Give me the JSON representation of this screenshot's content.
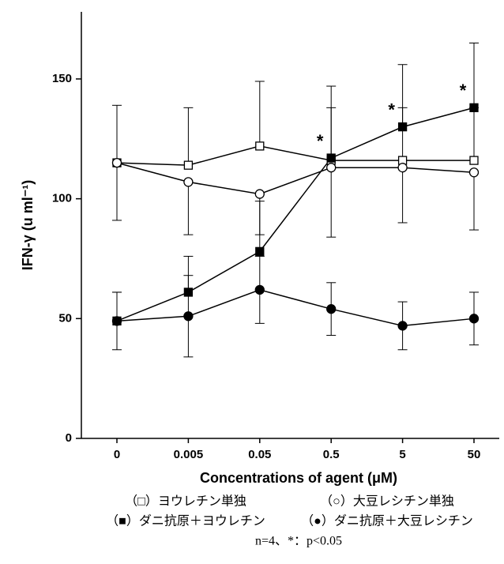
{
  "chart_data": {
    "type": "line",
    "ylabel": "IFN-γ (u ml⁻¹)",
    "xlabel": "Concentrations of agent (μM)",
    "categories": [
      "0",
      "0.005",
      "0.05",
      "0.5",
      "5",
      "50"
    ],
    "ylim": [
      0,
      178
    ],
    "yticks": [
      0,
      50,
      100,
      150
    ],
    "series": [
      {
        "name": "（□）ヨウレチン単独",
        "color": "#000000",
        "marker": "square-open",
        "error_side": "up",
        "values": [
          115,
          114,
          122,
          116,
          116,
          116
        ],
        "errors": [
          24,
          24,
          27,
          22,
          22,
          22
        ]
      },
      {
        "name": "（○）大豆レシチン単独",
        "color": "#000000",
        "marker": "circle-open",
        "error_side": "down",
        "values": [
          115,
          107,
          102,
          113,
          113,
          111
        ],
        "errors": [
          24,
          22,
          17,
          29,
          23,
          24
        ]
      },
      {
        "name": "（■）ダニ抗原＋ヨウレチン",
        "color": "#000000",
        "marker": "square-filled",
        "error_side": "up",
        "values": [
          49,
          61,
          78,
          117,
          130,
          138
        ],
        "errors": [
          12,
          15,
          21,
          30,
          26,
          27
        ],
        "annotations": [
          null,
          null,
          null,
          "*",
          "*",
          "*"
        ]
      },
      {
        "name": "（●）ダニ抗原＋大豆レシチン",
        "color": "#000000",
        "marker": "circle-filled",
        "error_side": "both",
        "values": [
          49,
          51,
          62,
          54,
          47,
          50
        ],
        "errors": [
          12,
          17,
          14,
          11,
          10,
          11
        ]
      }
    ],
    "note": "n=4、*：p<0.05"
  }
}
